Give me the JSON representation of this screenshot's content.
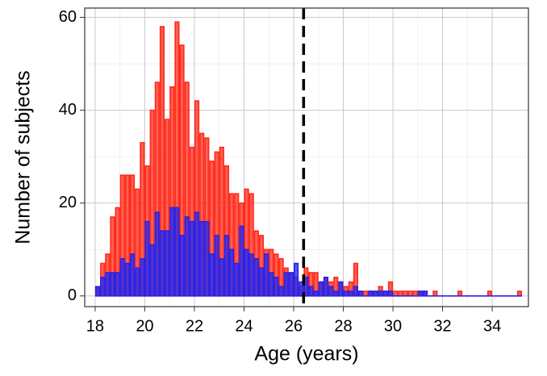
{
  "chart_data": {
    "type": "histogram",
    "xlabel": "Age (years)",
    "ylabel": "Number of subjects",
    "bins": [
      18,
      18.2,
      18.4,
      18.6,
      18.8,
      19,
      19.2,
      19.4,
      19.6,
      19.8,
      20,
      20.2,
      20.4,
      20.6,
      20.8,
      21,
      21.2,
      21.4,
      21.6,
      21.8,
      22,
      22.2,
      22.4,
      22.6,
      22.8,
      23,
      23.2,
      23.4,
      23.6,
      23.8,
      24,
      24.2,
      24.4,
      24.6,
      24.8,
      25,
      25.2,
      25.4,
      25.6,
      25.8,
      26,
      26.2,
      26.4,
      26.6,
      26.8,
      27,
      27.2,
      27.4,
      27.6,
      27.8,
      28,
      28.2,
      28.4,
      28.6,
      28.8,
      29,
      29.2,
      29.4,
      29.6,
      29.8,
      30,
      30.2,
      30.4,
      30.6,
      30.8,
      31,
      31.2,
      31.4,
      31.6,
      31.8,
      32,
      32.2,
      32.4,
      32.6,
      32.8,
      33,
      33.2,
      33.4,
      33.6,
      33.8,
      34,
      34.2,
      34.4,
      34.6,
      34.8,
      35,
      35.2
    ],
    "series": [
      {
        "color": "#ff2a1a",
        "values": [
          2,
          7,
          9,
          17,
          19,
          26,
          26,
          26,
          23,
          33,
          28,
          40,
          46,
          58,
          38,
          45,
          59,
          54,
          46,
          32,
          42,
          35,
          34,
          29,
          31,
          32,
          28,
          22,
          22,
          20,
          23,
          22,
          14,
          13,
          10,
          10,
          9,
          8,
          6,
          5,
          4,
          2,
          6,
          5,
          5,
          3,
          4,
          3,
          4,
          3,
          2,
          3,
          7,
          1,
          1,
          1,
          1,
          2,
          1,
          3,
          1,
          1,
          1,
          1,
          1,
          1,
          1,
          0,
          1,
          0,
          0,
          0,
          0,
          1,
          0,
          0,
          0,
          0,
          0,
          1,
          0,
          0,
          0,
          0,
          0,
          1
        ]
      },
      {
        "color": "#2323ee",
        "values": [
          2,
          4,
          5,
          5,
          5,
          8,
          7,
          9,
          6,
          8,
          16,
          11,
          18,
          14,
          14,
          19,
          19,
          13,
          17,
          16,
          18,
          16,
          16,
          9,
          13,
          8,
          13,
          10,
          7,
          15,
          10,
          9,
          8,
          6,
          9,
          5,
          4,
          2,
          5,
          5,
          7,
          3,
          4,
          2,
          1,
          3,
          4,
          2,
          1,
          3,
          1,
          1,
          2,
          1,
          0,
          1,
          1,
          1,
          1,
          1,
          0,
          0,
          0,
          0,
          0,
          1,
          1,
          0,
          0,
          0,
          0,
          0,
          0,
          0,
          0,
          0,
          0,
          0,
          0,
          0,
          0,
          0,
          0,
          0,
          0,
          0
        ]
      }
    ],
    "vline": 26.4,
    "xlim": [
      17.58,
      35.46
    ],
    "ylim": [
      -2.3,
      62
    ],
    "xticks": [
      18,
      20,
      22,
      24,
      26,
      28,
      30,
      32,
      34
    ],
    "yticks": [
      0,
      20,
      40,
      60
    ],
    "grid": true
  }
}
